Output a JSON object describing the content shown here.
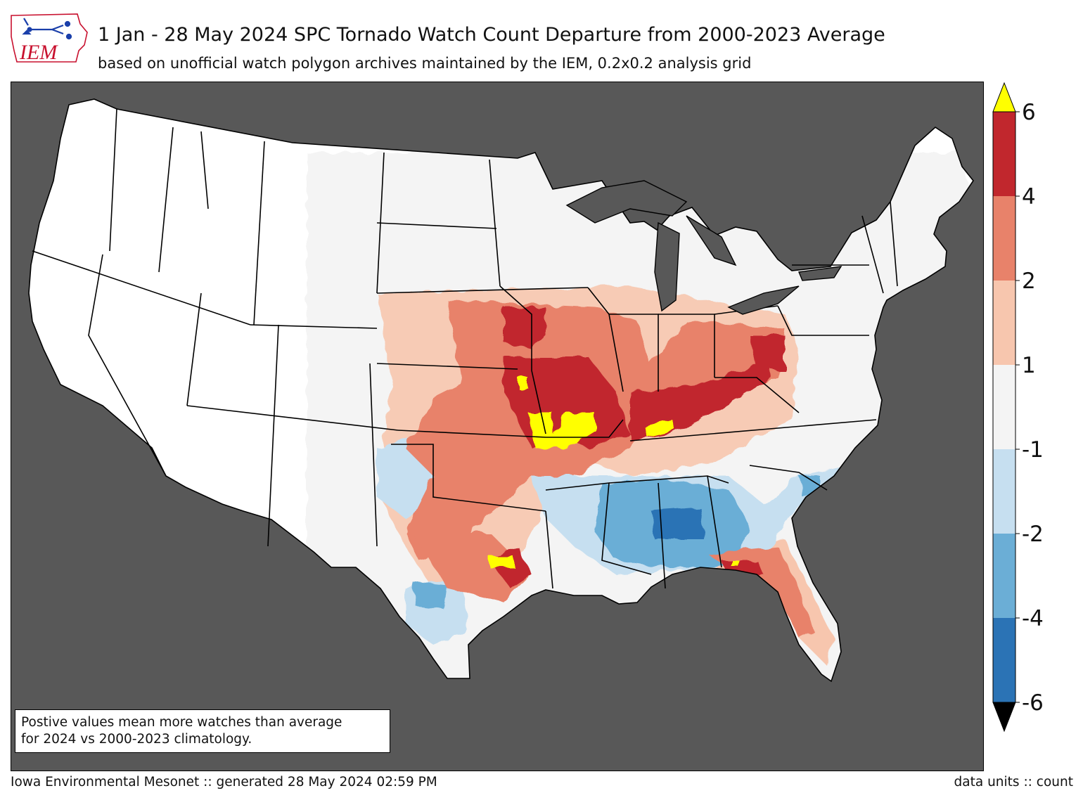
{
  "logo": {
    "text": "IEM",
    "color": "#c8102e",
    "mark": "iowa-state-outline-with-mesonet-symbol"
  },
  "header": {
    "title": "1 Jan - 28 May 2024 SPC Tornado Watch Count Departure from 2000-2023 Average",
    "subtitle": "based on unofficial watch polygon archives maintained by the IEM, 0.2x0.2 analysis grid"
  },
  "map": {
    "region": "Contiguous United States",
    "background_color": "#585858",
    "land_color": "#ffffff",
    "near_zero_color": "#f4f4f4",
    "analysis_grid": "0.2x0.2",
    "highlight_regions": [
      {
        "area": "Kansas / Missouri / Nebraska / Iowa",
        "level": "2 to 6+"
      },
      {
        "area": "Ohio Valley (Kentucky, Indiana, Ohio)",
        "level": "4 to 6"
      },
      {
        "area": "Oklahoma / North Texas",
        "level": "1 to 4"
      },
      {
        "area": "Mississippi / Alabama",
        "level": "-1 to -6"
      },
      {
        "area": "Florida / South Georgia",
        "level": "1 to 4"
      }
    ]
  },
  "note": {
    "line1": "Postive values mean more watches than average",
    "line2": "for 2024 vs 2000-2023 climatology."
  },
  "colorbar": {
    "ticks": [
      "6",
      "4",
      "2",
      "1",
      "-1",
      "-2",
      "-4",
      "-6"
    ],
    "bins": [
      {
        "from": 4,
        "to": 6,
        "color": "#c1272d"
      },
      {
        "from": 2,
        "to": 4,
        "color": "#e8826a"
      },
      {
        "from": 1,
        "to": 2,
        "color": "#f7c6ae"
      },
      {
        "from": -1,
        "to": 1,
        "color": "#f4f4f4"
      },
      {
        "from": -2,
        "to": -1,
        "color": "#c6dff0"
      },
      {
        "from": -4,
        "to": -2,
        "color": "#6baed6"
      },
      {
        "from": -6,
        "to": -4,
        "color": "#2b73b5"
      }
    ],
    "over_color": "#ffff00",
    "under_color": "#000000"
  },
  "footer": {
    "left": "Iowa Environmental Mesonet :: generated 28 May 2024 02:59 PM",
    "right": "data units :: count"
  }
}
